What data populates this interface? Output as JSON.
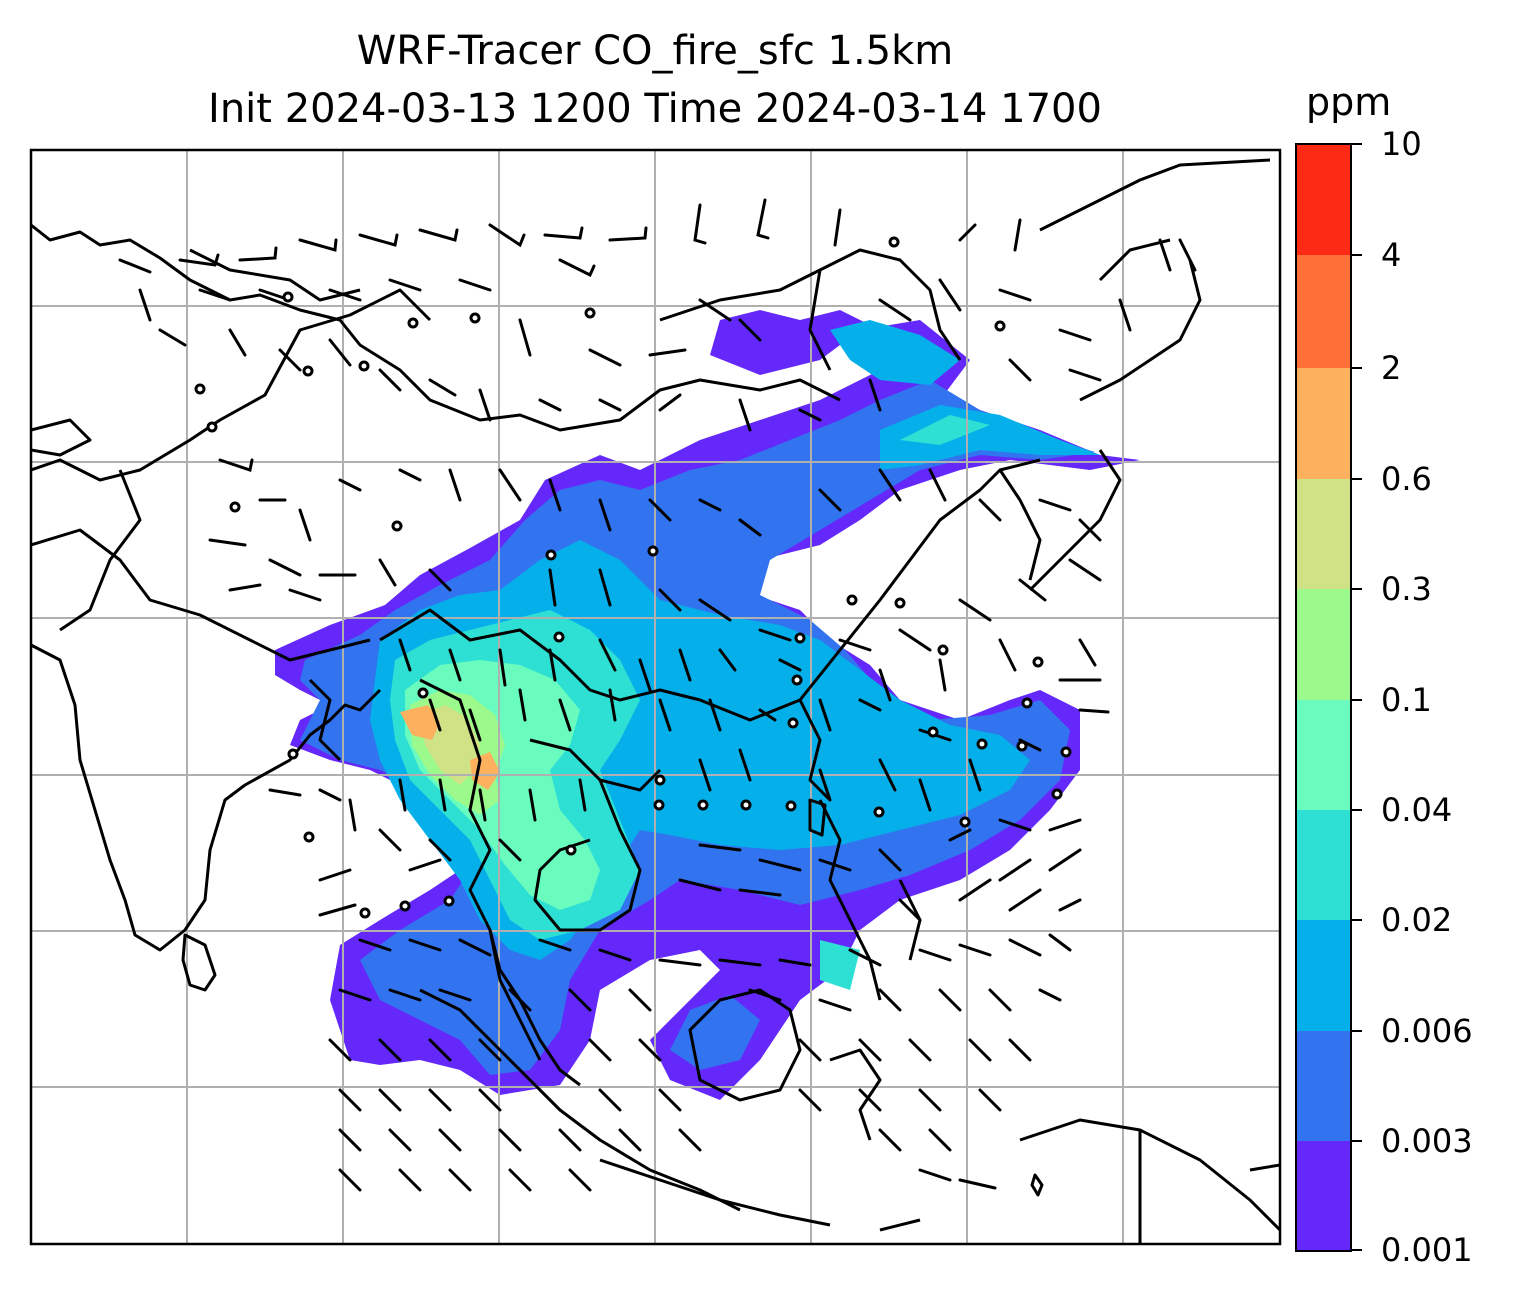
{
  "title": {
    "line1": "WRF-Tracer CO_fire_sfc 1.5km",
    "line2": "Init 2024-03-13 1200 Time 2024-03-14 1700"
  },
  "colorbar": {
    "label": "ppm",
    "levels": [
      "0.001",
      "0.003",
      "0.006",
      "0.02",
      "0.04",
      "0.1",
      "0.3",
      "0.6",
      "2",
      "4",
      "10"
    ],
    "colors": [
      "#6428fa",
      "#3274f0",
      "#05b0ea",
      "#2ee0d4",
      "#6afcbe",
      "#9cfa8c",
      "#cfe286",
      "#fdb05e",
      "#fe7038",
      "#fc2a14"
    ]
  },
  "map": {
    "gridlines": true,
    "wind_barbs": true,
    "coastlines": true
  }
}
